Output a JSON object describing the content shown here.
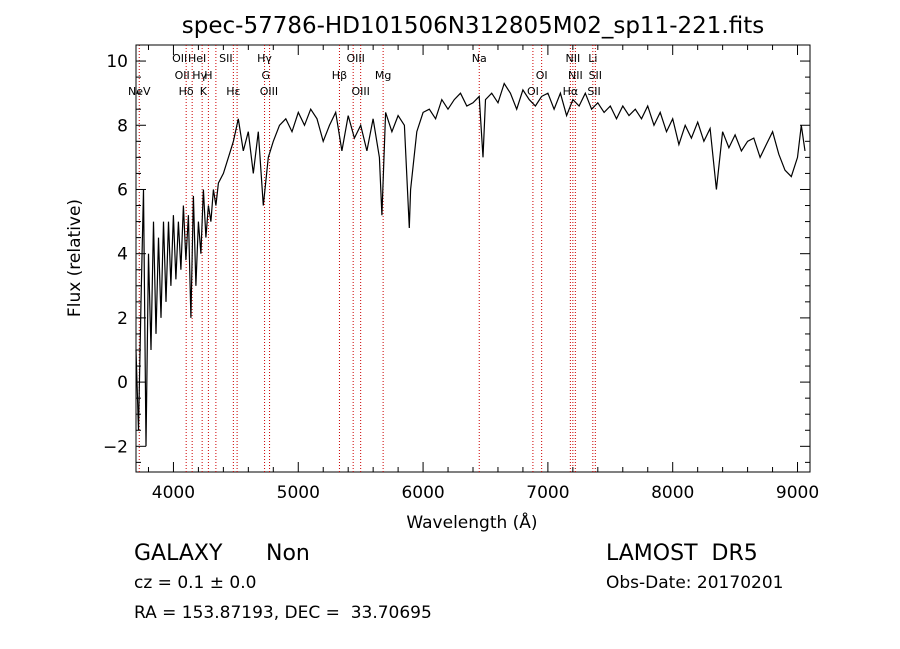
{
  "chart_data": {
    "type": "line",
    "title": "spec-57786-HD101506N312805M02_sp11-221.fits",
    "xlabel": "Wavelength (Å)",
    "ylabel": "Flux (relative)",
    "xlim": [
      3700,
      9100
    ],
    "ylim": [
      -2.8,
      10.5
    ],
    "xticks": [
      "4000",
      "5000",
      "6000",
      "7000",
      "8000",
      "9000"
    ],
    "yticks": [
      "−2",
      "0",
      "2",
      "4",
      "6",
      "8",
      "10"
    ],
    "series": [
      {
        "x": [
          3700,
          3720,
          3740,
          3760,
          3780,
          3800,
          3820,
          3840,
          3860,
          3880,
          3900,
          3920,
          3940,
          3960,
          3980,
          4000,
          4020,
          4040,
          4060,
          4080,
          4100,
          4120,
          4140,
          4160,
          4180,
          4200,
          4220,
          4240,
          4260,
          4280,
          4300,
          4320,
          4340,
          4360,
          4400,
          4440,
          4480,
          4520,
          4560,
          4600,
          4640,
          4680,
          4720,
          4760,
          4800,
          4850,
          4900,
          4950,
          5000,
          5050,
          5100,
          5150,
          5200,
          5250,
          5300,
          5350,
          5400,
          5450,
          5500,
          5550,
          5600,
          5650,
          5670,
          5700,
          5750,
          5800,
          5850,
          5890,
          5900,
          5950,
          6000,
          6050,
          6100,
          6150,
          6200,
          6250,
          6300,
          6350,
          6400,
          6450,
          6480,
          6500,
          6550,
          6600,
          6650,
          6700,
          6750,
          6800,
          6850,
          6900,
          6950,
          7000,
          7050,
          7100,
          7150,
          7200,
          7250,
          7300,
          7350,
          7400,
          7450,
          7500,
          7550,
          7600,
          7650,
          7700,
          7750,
          7800,
          7850,
          7900,
          7950,
          8000,
          8050,
          8100,
          8150,
          8200,
          8250,
          8300,
          8350,
          8400,
          8450,
          8500,
          8550,
          8600,
          8650,
          8700,
          8750,
          8800,
          8850,
          8900,
          8950,
          9000,
          9030,
          9060
        ],
        "y": [
          1.0,
          -1.5,
          2.5,
          6.0,
          -2.0,
          4.0,
          1.0,
          5.0,
          1.5,
          4.5,
          2.0,
          5.0,
          2.5,
          5.0,
          3.0,
          5.2,
          3.2,
          5.0,
          3.5,
          5.5,
          3.8,
          5.2,
          2.0,
          5.8,
          3.0,
          5.0,
          4.0,
          6.0,
          4.5,
          5.5,
          5.0,
          6.0,
          5.5,
          6.2,
          6.5,
          7.0,
          7.5,
          8.2,
          7.2,
          7.8,
          6.5,
          7.8,
          5.5,
          7.0,
          7.5,
          8.0,
          8.2,
          7.8,
          8.4,
          8.0,
          8.5,
          8.2,
          7.5,
          8.0,
          8.4,
          7.2,
          8.3,
          7.6,
          8.0,
          7.2,
          8.2,
          7.0,
          5.2,
          8.4,
          7.8,
          8.3,
          8.0,
          4.8,
          6.0,
          7.8,
          8.4,
          8.5,
          8.2,
          8.8,
          8.5,
          8.8,
          9.0,
          8.6,
          8.7,
          8.9,
          7.0,
          8.8,
          9.0,
          8.7,
          9.3,
          9.0,
          8.5,
          9.1,
          8.8,
          8.6,
          8.9,
          9.0,
          8.5,
          9.0,
          8.3,
          8.8,
          8.6,
          9.0,
          8.5,
          8.7,
          8.4,
          8.6,
          8.2,
          8.6,
          8.3,
          8.5,
          8.2,
          8.6,
          8.0,
          8.4,
          7.8,
          8.2,
          7.4,
          8.0,
          7.6,
          8.1,
          7.5,
          7.9,
          6.0,
          7.8,
          7.3,
          7.7,
          7.2,
          7.5,
          7.6,
          7.0,
          7.4,
          7.8,
          7.1,
          6.6,
          6.4,
          7.0,
          8.0,
          7.2
        ]
      }
    ],
    "line_markers": [
      {
        "label": "NeV",
        "x": 3726,
        "row": 3
      },
      {
        "label": "OII",
        "x": 4050,
        "row": 1
      },
      {
        "label": "OII",
        "x": 4070,
        "row": 2
      },
      {
        "label": "Hδ",
        "x": 4102,
        "row": 3
      },
      {
        "label": "HeI",
        "x": 4190,
        "row": 1
      },
      {
        "label": "Hγ",
        "x": 4210,
        "row": 2
      },
      {
        "label": "K",
        "x": 4240,
        "row": 3
      },
      {
        "label": "H",
        "x": 4280,
        "row": 2
      },
      {
        "label": "SII",
        "x": 4420,
        "row": 1
      },
      {
        "label": "Hε",
        "x": 4480,
        "row": 3
      },
      {
        "label": "Hγ",
        "x": 4730,
        "row": 1
      },
      {
        "label": "G",
        "x": 4740,
        "row": 2
      },
      {
        "label": "OIII",
        "x": 4765,
        "row": 3
      },
      {
        "label": "Hβ",
        "x": 5330,
        "row": 2
      },
      {
        "label": "OIII",
        "x": 5460,
        "row": 1
      },
      {
        "label": "OIII",
        "x": 5500,
        "row": 3
      },
      {
        "label": "Mg",
        "x": 5680,
        "row": 2
      },
      {
        "label": "Na",
        "x": 6450,
        "row": 1
      },
      {
        "label": "OI",
        "x": 6880,
        "row": 3
      },
      {
        "label": "OI",
        "x": 6950,
        "row": 2
      },
      {
        "label": "Hα",
        "x": 7180,
        "row": 3
      },
      {
        "label": "NII",
        "x": 7200,
        "row": 1
      },
      {
        "label": "NII",
        "x": 7220,
        "row": 2
      },
      {
        "label": "Li",
        "x": 7360,
        "row": 1
      },
      {
        "label": "SII",
        "x": 7380,
        "row": 2
      },
      {
        "label": "SII",
        "x": 7370,
        "row": 3
      }
    ],
    "marker_lines_x": [
      3726,
      4102,
      4150,
      4230,
      4280,
      4340,
      4480,
      4510,
      4730,
      4770,
      5330,
      5440,
      5500,
      5680,
      6450,
      6880,
      6950,
      7180,
      7200,
      7220,
      7360,
      7380
    ],
    "grid": false,
    "colors": {
      "series": "#000000",
      "marker_lines": "#cc0000",
      "axes": "#000000"
    }
  },
  "info": {
    "class": "GALAXY",
    "subclass": "Non",
    "survey": "LAMOST  DR5",
    "cz": "cz = 0.1 ± 0.0",
    "obs_date": "Obs-Date: 20170201",
    "radec": "RA = 153.87193, DEC =  33.70695"
  }
}
